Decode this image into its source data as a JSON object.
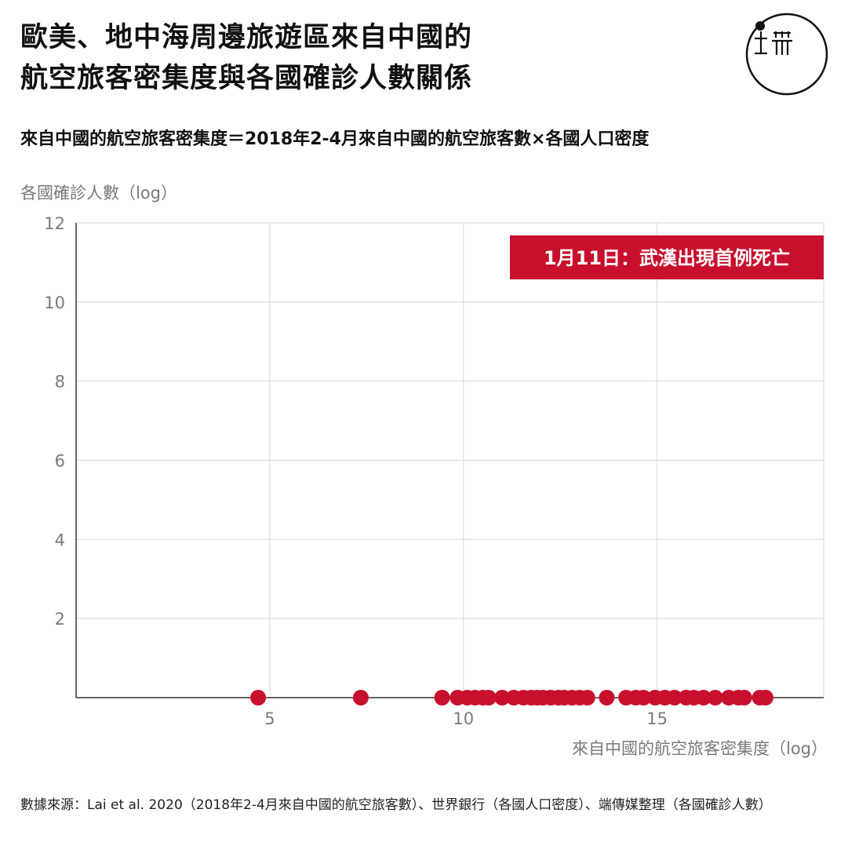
{
  "header": {
    "title_line1": "歐美、地中海周邊旅遊區來自中國的",
    "title_line2": "航空旅客密集度與各國確診人數關係",
    "subtitle": "來自中國的航空旅客密集度＝2018年2-4月來自中國的航空旅客數×各國人口密度"
  },
  "logo": {
    "icon": "initium-logo-icon"
  },
  "footer": {
    "source": "數據來源：Lai et al. 2020（2018年2-4月來自中國的航空旅客數）、世界銀行（各國人口密度）、端傳媒整理（各國確診人數）"
  },
  "colors": {
    "accent": "#c8102e",
    "grid": "#d9d9d9",
    "axis_text": "#7a7a7a"
  },
  "chart_data": {
    "type": "scatter",
    "xlabel": "來自中國的航空旅客密集度（log）",
    "ylabel": "各國確診人數（log）",
    "xlim": [
      0,
      19.3
    ],
    "ylim": [
      0,
      12
    ],
    "xticks": [
      5,
      10,
      15
    ],
    "yticks": [
      2,
      4,
      6,
      8,
      10,
      12
    ],
    "grid": true,
    "annotation": "1月11日：武漢出現首例死亡",
    "annotation_position": "top-right",
    "x": [
      4.7,
      7.35,
      9.45,
      9.85,
      10.1,
      10.3,
      10.5,
      10.65,
      11.0,
      11.3,
      11.55,
      11.75,
      11.9,
      12.05,
      12.25,
      12.45,
      12.6,
      12.8,
      13.0,
      13.2,
      13.7,
      14.2,
      14.45,
      14.65,
      14.95,
      15.2,
      15.45,
      15.75,
      15.95,
      16.2,
      16.5,
      16.85,
      17.1,
      17.25,
      17.65,
      17.8
    ],
    "y": [
      0,
      0,
      0,
      0,
      0,
      0,
      0,
      0,
      0,
      0,
      0,
      0,
      0,
      0,
      0,
      0,
      0,
      0,
      0,
      0,
      0,
      0,
      0,
      0,
      0,
      0,
      0,
      0,
      0,
      0,
      0,
      0,
      0,
      0,
      0,
      0
    ]
  }
}
